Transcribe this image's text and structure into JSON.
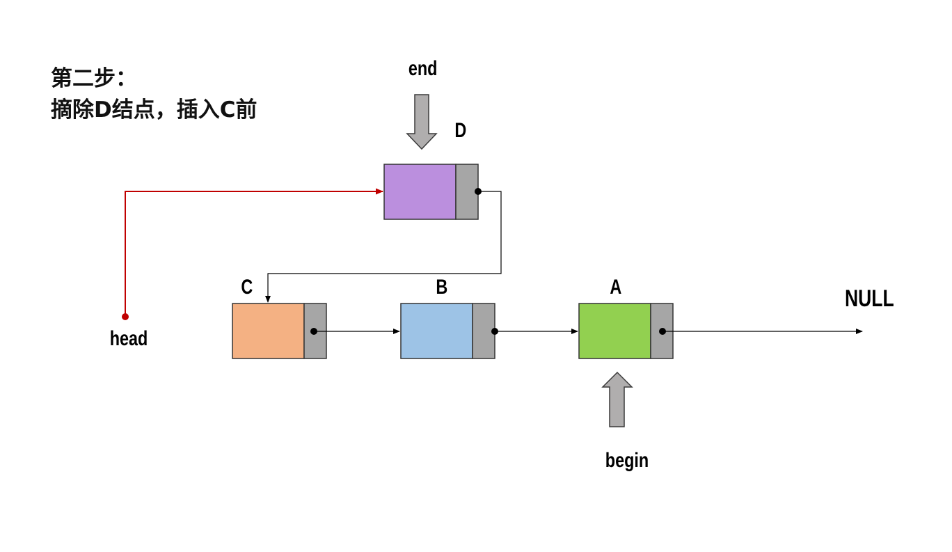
{
  "title": {
    "line1": "第二步：",
    "line2": "摘除D结点，插入C前"
  },
  "pointers": {
    "end": "end",
    "begin": "begin",
    "head": "head",
    "null": "NULL"
  },
  "nodes": [
    {
      "id": "D",
      "label": "D",
      "color": "#bb8fde"
    },
    {
      "id": "C",
      "label": "C",
      "color": "#f4b183"
    },
    {
      "id": "B",
      "label": "B",
      "color": "#9dc3e6"
    },
    {
      "id": "A",
      "label": "A",
      "color": "#92d050"
    }
  ],
  "colors": {
    "pointer_cell": "#a6a6a6",
    "head_link": "#c00000",
    "pointer_arrow": "#b0aeae"
  }
}
